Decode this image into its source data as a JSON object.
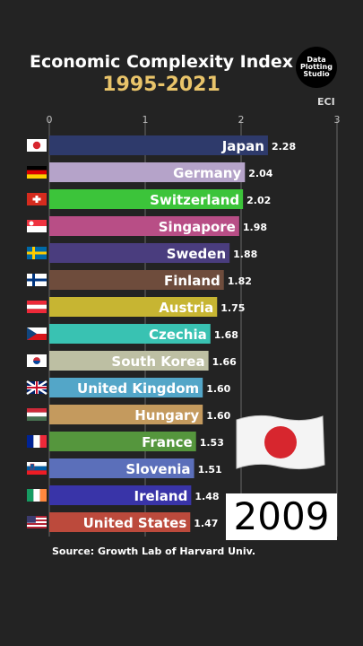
{
  "title": "Economic Complexity Index",
  "subtitle": "1995-2021",
  "logo": [
    "Data",
    "Plotting",
    "Studio"
  ],
  "source": "Source: Growth Lab of Harvard Univ.",
  "year": "2009",
  "icons": {
    "big_flag": "japan-flag-icon"
  },
  "chart_data": {
    "type": "bar",
    "orientation": "horizontal",
    "title": "Economic Complexity Index",
    "subtitle": "1995-2021",
    "xlabel": "ECI",
    "xlim": [
      0,
      3
    ],
    "xticks": [
      0,
      1,
      2,
      3
    ],
    "grid": true,
    "categories": [
      "Japan",
      "Germany",
      "Switzerland",
      "Singapore",
      "Sweden",
      "Finland",
      "Austria",
      "Czechia",
      "South Korea",
      "United Kingdom",
      "Hungary",
      "France",
      "Slovenia",
      "Ireland",
      "United States"
    ],
    "values": [
      2.28,
      2.04,
      2.02,
      1.98,
      1.88,
      1.82,
      1.75,
      1.68,
      1.66,
      1.6,
      1.6,
      1.53,
      1.51,
      1.48,
      1.47
    ],
    "value_labels": [
      "2.28",
      "2.04",
      "2.02",
      "1.98",
      "1.88",
      "1.82",
      "1.75",
      "1.68",
      "1.66",
      "1.60",
      "1.60",
      "1.53",
      "1.51",
      "1.48",
      "1.47"
    ],
    "colors": [
      "#2e3a6b",
      "#b5a3c9",
      "#3cc43a",
      "#b84e86",
      "#4a3d7e",
      "#6e4c3c",
      "#c7b532",
      "#39c2b2",
      "#bdbfa3",
      "#53a6c8",
      "#c49a5e",
      "#55963d",
      "#5b6fba",
      "#3934a8",
      "#bc4a3c"
    ],
    "flags": [
      "japan-flag-icon",
      "germany-flag-icon",
      "switzerland-flag-icon",
      "singapore-flag-icon",
      "sweden-flag-icon",
      "finland-flag-icon",
      "austria-flag-icon",
      "czechia-flag-icon",
      "south-korea-flag-icon",
      "united-kingdom-flag-icon",
      "hungary-flag-icon",
      "france-flag-icon",
      "slovenia-flag-icon",
      "ireland-flag-icon",
      "united-states-flag-icon"
    ]
  }
}
